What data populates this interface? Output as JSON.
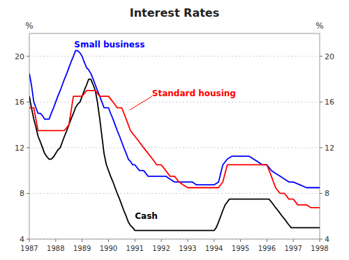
{
  "chart_data": {
    "type": "line",
    "title": "Interest Rates",
    "ylabel": "%",
    "y2label": "%",
    "xlim": [
      1987.0,
      1998.0
    ],
    "xticks": [
      1987,
      1988,
      1989,
      1990,
      1991,
      1992,
      1993,
      1994,
      1995,
      1996,
      1997,
      1998
    ],
    "ylim": [
      4,
      22
    ],
    "yticks": [
      4,
      8,
      12,
      16,
      20
    ],
    "y2lim": [
      4,
      22
    ],
    "y2ticks": [
      4,
      8,
      12,
      16,
      20
    ],
    "grid": true,
    "series": [
      {
        "color": "#000000",
        "x": [
          1987.0,
          1987.08,
          1987.17,
          1987.25,
          1987.33,
          1987.42,
          1987.5,
          1987.58,
          1987.67,
          1987.75,
          1987.83,
          1987.92,
          1988.0,
          1988.08,
          1988.17,
          1988.25,
          1988.33,
          1988.42,
          1988.5,
          1988.58,
          1988.67,
          1988.75,
          1988.83,
          1988.92,
          1989.0,
          1989.08,
          1989.17,
          1989.25,
          1989.33,
          1989.42,
          1989.5,
          1989.58,
          1989.67,
          1989.75,
          1989.83,
          1989.92,
          1990.0,
          1990.08,
          1990.17,
          1990.25,
          1990.33,
          1990.42,
          1990.5,
          1990.58,
          1990.67,
          1990.75,
          1990.83,
          1990.92,
          1991.0,
          1991.08,
          1991.17,
          1991.25,
          1991.33,
          1991.42,
          1991.5,
          1991.58,
          1991.67,
          1991.75,
          1991.83,
          1991.92,
          1992.0,
          1992.25,
          1992.5,
          1992.75,
          1993.0,
          1993.25,
          1993.5,
          1993.75,
          1994.0,
          1994.08,
          1994.17,
          1994.25,
          1994.33,
          1994.42,
          1994.5,
          1994.58,
          1994.67,
          1994.75,
          1994.83,
          1994.92,
          1995.0,
          1995.25,
          1995.5,
          1995.75,
          1996.0,
          1996.08,
          1996.17,
          1996.25,
          1996.33,
          1996.42,
          1996.5,
          1996.58,
          1996.67,
          1996.75,
          1996.83,
          1996.92,
          1997.0,
          1997.25,
          1997.5,
          1997.75,
          1998.0
        ],
        "values": [
          16.5,
          15.5,
          14.5,
          13.8,
          13.0,
          12.5,
          12.0,
          11.5,
          11.2,
          11.0,
          11.0,
          11.2,
          11.5,
          11.8,
          12.0,
          12.5,
          13.0,
          13.5,
          14.0,
          14.5,
          15.0,
          15.5,
          15.8,
          16.0,
          16.5,
          17.0,
          17.5,
          18.0,
          18.0,
          17.5,
          17.0,
          16.0,
          14.5,
          13.0,
          11.5,
          10.5,
          10.0,
          9.5,
          9.0,
          8.5,
          8.0,
          7.5,
          7.0,
          6.5,
          6.0,
          5.5,
          5.2,
          5.0,
          4.75,
          4.75,
          4.75,
          4.75,
          4.75,
          4.75,
          4.75,
          4.75,
          4.75,
          4.75,
          4.75,
          4.75,
          4.75,
          4.75,
          4.75,
          4.75,
          4.75,
          4.75,
          4.75,
          4.75,
          4.75,
          5.0,
          5.5,
          6.0,
          6.5,
          7.0,
          7.25,
          7.5,
          7.5,
          7.5,
          7.5,
          7.5,
          7.5,
          7.5,
          7.5,
          7.5,
          7.5,
          7.5,
          7.25,
          7.0,
          6.75,
          6.5,
          6.25,
          6.0,
          5.75,
          5.5,
          5.25,
          5.0,
          5.0,
          5.0,
          5.0,
          5.0,
          5.0
        ]
      },
      {
        "color": "#0000ff",
        "x": [
          1987.0,
          1987.08,
          1987.17,
          1987.25,
          1987.33,
          1987.42,
          1987.5,
          1987.58,
          1987.67,
          1987.75,
          1987.83,
          1987.92,
          1988.0,
          1988.08,
          1988.17,
          1988.25,
          1988.33,
          1988.42,
          1988.5,
          1988.58,
          1988.67,
          1988.75,
          1988.83,
          1988.92,
          1989.0,
          1989.08,
          1989.17,
          1989.25,
          1989.33,
          1989.42,
          1989.5,
          1989.58,
          1989.67,
          1989.75,
          1989.83,
          1989.92,
          1990.0,
          1990.08,
          1990.17,
          1990.25,
          1990.33,
          1990.42,
          1990.5,
          1990.58,
          1990.67,
          1990.75,
          1990.83,
          1990.92,
          1991.0,
          1991.17,
          1991.33,
          1991.5,
          1991.67,
          1991.83,
          1992.0,
          1992.17,
          1992.33,
          1992.5,
          1992.67,
          1992.83,
          1993.0,
          1993.17,
          1993.33,
          1993.5,
          1993.67,
          1993.83,
          1994.0,
          1994.17,
          1994.33,
          1994.5,
          1994.67,
          1994.83,
          1995.0,
          1995.17,
          1995.33,
          1995.5,
          1995.67,
          1995.83,
          1996.0,
          1996.17,
          1996.33,
          1996.5,
          1996.67,
          1996.83,
          1997.0,
          1997.25,
          1997.5,
          1997.75,
          1998.0
        ],
        "values": [
          18.5,
          17.5,
          16.0,
          15.5,
          15.0,
          15.0,
          14.8,
          14.5,
          14.5,
          14.5,
          15.0,
          15.5,
          16.0,
          16.5,
          17.0,
          17.5,
          18.0,
          18.5,
          19.0,
          19.5,
          20.0,
          20.5,
          20.5,
          20.3,
          20.0,
          19.5,
          19.0,
          18.8,
          18.5,
          18.0,
          17.5,
          17.0,
          16.5,
          16.0,
          15.5,
          15.5,
          15.5,
          15.0,
          14.5,
          14.0,
          13.5,
          13.0,
          12.5,
          12.0,
          11.5,
          11.0,
          10.8,
          10.5,
          10.5,
          10.0,
          10.0,
          9.5,
          9.5,
          9.5,
          9.5,
          9.5,
          9.25,
          9.0,
          9.0,
          9.0,
          9.0,
          9.0,
          8.75,
          8.75,
          8.75,
          8.75,
          8.75,
          9.0,
          10.5,
          11.0,
          11.25,
          11.25,
          11.25,
          11.25,
          11.25,
          11.0,
          10.75,
          10.5,
          10.5,
          10.0,
          9.75,
          9.5,
          9.25,
          9.0,
          9.0,
          8.75,
          8.5,
          8.5,
          8.5
        ]
      },
      {
        "color": "#ff0000",
        "x": [
          1987.0,
          1987.17,
          1987.33,
          1987.5,
          1987.67,
          1987.83,
          1988.0,
          1988.17,
          1988.33,
          1988.5,
          1988.67,
          1988.83,
          1989.0,
          1989.17,
          1989.33,
          1989.5,
          1989.67,
          1989.83,
          1990.0,
          1990.17,
          1990.33,
          1990.5,
          1990.67,
          1990.83,
          1991.0,
          1991.17,
          1991.33,
          1991.5,
          1991.67,
          1991.83,
          1992.0,
          1992.17,
          1992.33,
          1992.5,
          1992.67,
          1992.83,
          1993.0,
          1993.17,
          1993.33,
          1993.5,
          1993.67,
          1993.83,
          1994.0,
          1994.17,
          1994.33,
          1994.5,
          1994.67,
          1994.83,
          1995.0,
          1995.17,
          1995.33,
          1995.5,
          1995.67,
          1995.83,
          1996.0,
          1996.17,
          1996.33,
          1996.5,
          1996.67,
          1996.83,
          1997.0,
          1997.17,
          1997.33,
          1997.5,
          1997.67,
          1997.83,
          1998.0
        ],
        "values": [
          15.5,
          15.5,
          13.5,
          13.5,
          13.5,
          13.5,
          13.5,
          13.5,
          13.5,
          14.0,
          16.5,
          16.5,
          16.5,
          17.0,
          17.0,
          17.0,
          16.5,
          16.5,
          16.5,
          16.0,
          15.5,
          15.5,
          14.5,
          13.5,
          13.0,
          12.5,
          12.0,
          11.5,
          11.0,
          10.5,
          10.5,
          10.0,
          9.5,
          9.5,
          9.0,
          8.75,
          8.5,
          8.5,
          8.5,
          8.5,
          8.5,
          8.5,
          8.5,
          8.5,
          9.0,
          10.5,
          10.5,
          10.5,
          10.5,
          10.5,
          10.5,
          10.5,
          10.5,
          10.5,
          10.5,
          9.5,
          8.5,
          8.0,
          8.0,
          7.5,
          7.5,
          7.0,
          7.0,
          7.0,
          6.75,
          6.75,
          6.75
        ]
      }
    ],
    "annotations": [
      {
        "text": "Small business",
        "x": 1988.7,
        "y": 20.8,
        "color": "#0000ff"
      },
      {
        "text": "Standard housing",
        "x": 1991.65,
        "y": 16.5,
        "arrow_x": 1990.8,
        "arrow_y": 15.3,
        "color": "#ff0000"
      },
      {
        "text": "Cash",
        "x": 1991.0,
        "y": 5.8,
        "color": "#000000"
      }
    ]
  }
}
